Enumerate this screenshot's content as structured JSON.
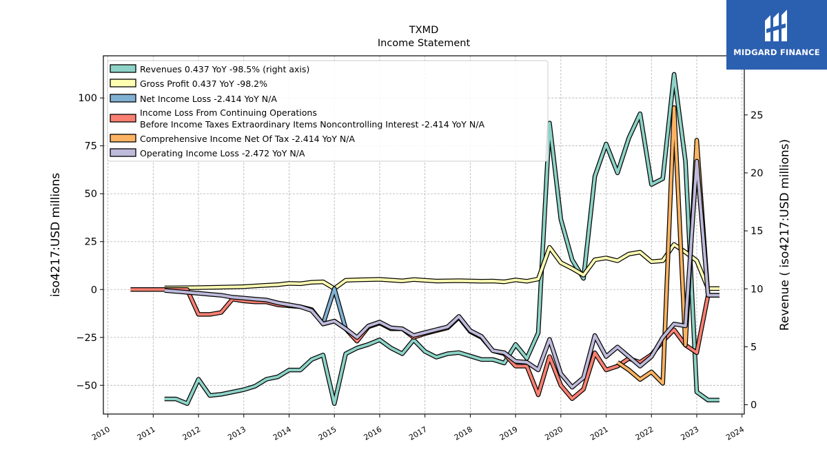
{
  "chart_data": {
    "type": "line",
    "title": "TXMD",
    "subtitle": "Income Statement",
    "ylabel_left": "iso4217:USD  millions",
    "ylabel_right": "Revenue ( iso4217:USD  millions)",
    "x_ticks": [
      "2010",
      "2011",
      "2012",
      "2013",
      "2014",
      "2015",
      "2016",
      "2017",
      "2018",
      "2019",
      "2020",
      "2021",
      "2022",
      "2023",
      "2024"
    ],
    "y_left_ticks": [
      -50,
      -25,
      0,
      25,
      50,
      75,
      100
    ],
    "y_right_ticks": [
      0,
      5,
      10,
      15,
      20,
      25
    ],
    "ylim_left": [
      -65,
      122
    ],
    "ylim_right": [
      -0.8,
      30.1
    ],
    "xlim": [
      2009.9,
      2024.05
    ],
    "grid": true,
    "legend_placement": "upper-left",
    "series": [
      {
        "key": "revenues",
        "name": "Revenues  0.437 YoY -98.5% (right axis)",
        "color": "#8dd3c7",
        "axis": "right",
        "points": [
          [
            2011.25,
            0.5
          ],
          [
            2011.5,
            0.5
          ],
          [
            2011.75,
            0.1
          ],
          [
            2012.0,
            2.2
          ],
          [
            2012.25,
            0.8
          ],
          [
            2012.5,
            0.9
          ],
          [
            2013.0,
            1.3
          ],
          [
            2013.25,
            1.6
          ],
          [
            2013.5,
            2.2
          ],
          [
            2013.75,
            2.4
          ],
          [
            2014.0,
            3.0
          ],
          [
            2014.25,
            3.0
          ],
          [
            2014.5,
            3.9
          ],
          [
            2014.75,
            4.3
          ],
          [
            2015.0,
            0.1
          ],
          [
            2015.25,
            4.4
          ],
          [
            2015.5,
            4.9
          ],
          [
            2015.75,
            5.2
          ],
          [
            2016.0,
            5.6
          ],
          [
            2016.25,
            4.9
          ],
          [
            2016.5,
            4.4
          ],
          [
            2016.75,
            5.6
          ],
          [
            2017.0,
            4.6
          ],
          [
            2017.25,
            4.1
          ],
          [
            2017.5,
            4.4
          ],
          [
            2017.75,
            4.5
          ],
          [
            2018.0,
            4.2
          ],
          [
            2018.25,
            3.9
          ],
          [
            2018.5,
            3.9
          ],
          [
            2018.75,
            3.6
          ],
          [
            2019.0,
            5.2
          ],
          [
            2019.25,
            4.0
          ],
          [
            2019.5,
            6.2
          ],
          [
            2019.75,
            24.3
          ],
          [
            2020.0,
            16.0
          ],
          [
            2020.25,
            12.5
          ],
          [
            2020.5,
            10.9
          ],
          [
            2020.75,
            19.7
          ],
          [
            2021.0,
            22.5
          ],
          [
            2021.25,
            20.0
          ],
          [
            2021.5,
            23.0
          ],
          [
            2021.75,
            25.1
          ],
          [
            2022.0,
            19.0
          ],
          [
            2022.25,
            19.5
          ],
          [
            2022.5,
            28.5
          ],
          [
            2022.75,
            21.0
          ],
          [
            2023.0,
            1.1
          ],
          [
            2023.25,
            0.4
          ],
          [
            2023.5,
            0.4
          ]
        ]
      },
      {
        "key": "gross_profit",
        "name": "Gross Profit  0.437 YoY -98.2%",
        "color": "#ffffb3",
        "axis": "left",
        "points": [
          [
            2011.25,
            0.8
          ],
          [
            2012.0,
            1.0
          ],
          [
            2012.5,
            1.2
          ],
          [
            2013.0,
            1.5
          ],
          [
            2013.5,
            2.2
          ],
          [
            2013.75,
            2.5
          ],
          [
            2014.0,
            3.2
          ],
          [
            2014.25,
            3.0
          ],
          [
            2014.5,
            3.8
          ],
          [
            2014.75,
            4.0
          ],
          [
            2015.0,
            0.5
          ],
          [
            2015.25,
            4.8
          ],
          [
            2015.5,
            5.0
          ],
          [
            2016.0,
            5.3
          ],
          [
            2016.5,
            4.5
          ],
          [
            2016.75,
            5.2
          ],
          [
            2017.0,
            4.8
          ],
          [
            2017.25,
            4.4
          ],
          [
            2017.75,
            4.6
          ],
          [
            2018.25,
            4.3
          ],
          [
            2018.5,
            4.4
          ],
          [
            2018.75,
            4.0
          ],
          [
            2019.0,
            5.0
          ],
          [
            2019.25,
            4.3
          ],
          [
            2019.5,
            5.5
          ],
          [
            2019.75,
            22.0
          ],
          [
            2020.0,
            14.0
          ],
          [
            2020.25,
            11.0
          ],
          [
            2020.5,
            7.5
          ],
          [
            2020.75,
            15.5
          ],
          [
            2021.0,
            16.5
          ],
          [
            2021.25,
            15.0
          ],
          [
            2021.5,
            18.5
          ],
          [
            2021.75,
            19.5
          ],
          [
            2022.0,
            14.5
          ],
          [
            2022.25,
            15.0
          ],
          [
            2022.5,
            23.5
          ],
          [
            2022.75,
            19.5
          ],
          [
            2023.0,
            15.0
          ],
          [
            2023.25,
            0.5
          ],
          [
            2023.5,
            0.5
          ]
        ]
      },
      {
        "key": "net_income",
        "name": "Net Income Loss  -2.414 YoY N/A",
        "color": "#80b1d3",
        "axis": "left",
        "points": [
          [
            2014.75,
            -18.0
          ],
          [
            2015.0,
            0.5
          ],
          [
            2015.25,
            -20.5
          ],
          [
            2015.5,
            -27.0
          ]
        ]
      },
      {
        "key": "pretax_income",
        "name": "Income Loss From Continuing Operations\nBefore Income Taxes Extraordinary Items Noncontrolling Interest  -2.414 YoY N/A",
        "color": "#fb8072",
        "axis": "left",
        "points": [
          [
            2010.5,
            0.0
          ],
          [
            2010.75,
            0.0
          ],
          [
            2011.25,
            0.0
          ],
          [
            2011.5,
            0.0
          ],
          [
            2011.75,
            0.0
          ],
          [
            2012.0,
            -13.0
          ],
          [
            2012.25,
            -13.0
          ],
          [
            2012.5,
            -12.0
          ],
          [
            2012.75,
            -5.0
          ],
          [
            2013.0,
            -6.0
          ],
          [
            2013.25,
            -6.5
          ],
          [
            2013.5,
            -6.5
          ],
          [
            2013.75,
            -8.0
          ],
          [
            2014.0,
            -8.5
          ],
          [
            2014.25,
            -9.0
          ],
          [
            2014.5,
            -10.5
          ],
          [
            2014.75,
            -18.0
          ],
          [
            2015.0,
            -16.5
          ],
          [
            2015.25,
            -20.5
          ],
          [
            2015.5,
            -27.0
          ],
          [
            2015.75,
            -19.5
          ],
          [
            2016.0,
            -17.5
          ],
          [
            2016.25,
            -20.5
          ],
          [
            2016.5,
            -20.5
          ],
          [
            2016.75,
            -25.0
          ],
          [
            2017.0,
            -23.0
          ],
          [
            2017.25,
            -21.5
          ],
          [
            2017.5,
            -20.0
          ],
          [
            2017.75,
            -14.5
          ],
          [
            2018.0,
            -22.0
          ],
          [
            2018.25,
            -25.0
          ],
          [
            2018.5,
            -32.0
          ],
          [
            2018.75,
            -33.5
          ],
          [
            2019.0,
            -40.0
          ],
          [
            2019.25,
            -40.0
          ],
          [
            2019.5,
            -55.0
          ],
          [
            2019.75,
            -35.0
          ],
          [
            2020.0,
            -50.0
          ],
          [
            2020.25,
            -57.0
          ],
          [
            2020.5,
            -52.0
          ],
          [
            2020.75,
            -33.0
          ],
          [
            2021.0,
            -42.0
          ],
          [
            2021.25,
            -40.0
          ],
          [
            2021.5,
            -36.0
          ],
          [
            2021.75,
            -38.0
          ],
          [
            2022.0,
            -34.0
          ],
          [
            2022.25,
            -27.0
          ],
          [
            2022.5,
            -21.0
          ],
          [
            2022.75,
            -29.0
          ],
          [
            2023.0,
            -33.0
          ],
          [
            2023.25,
            -3.0
          ],
          [
            2023.5,
            -3.0
          ]
        ]
      },
      {
        "key": "comprehensive_income",
        "name": "Comprehensive Income Net Of Tax  -2.414 YoY N/A",
        "color": "#fdb462",
        "axis": "left",
        "points": [
          [
            2021.25,
            -38.0
          ],
          [
            2021.5,
            -42.0
          ],
          [
            2021.75,
            -47.0
          ],
          [
            2022.0,
            -43.0
          ],
          [
            2022.25,
            -49.0
          ],
          [
            2022.5,
            95.0
          ],
          [
            2022.75,
            -29.0
          ],
          [
            2023.0,
            78.0
          ],
          [
            2023.25,
            -3.0
          ],
          [
            2023.5,
            -3.0
          ]
        ]
      },
      {
        "key": "operating_income",
        "name": "Operating Income Loss  -2.472 YoY N/A",
        "color": "#bebada",
        "axis": "left",
        "points": [
          [
            2011.25,
            -0.5
          ],
          [
            2011.5,
            -1.0
          ],
          [
            2011.75,
            -1.5
          ],
          [
            2012.0,
            -2.0
          ],
          [
            2012.25,
            -2.5
          ],
          [
            2012.5,
            -3.0
          ],
          [
            2012.75,
            -4.0
          ],
          [
            2013.0,
            -4.5
          ],
          [
            2013.25,
            -5.0
          ],
          [
            2013.5,
            -5.5
          ],
          [
            2013.75,
            -7.0
          ],
          [
            2014.0,
            -8.0
          ],
          [
            2014.25,
            -9.0
          ],
          [
            2014.5,
            -11.0
          ],
          [
            2014.75,
            -18.0
          ],
          [
            2015.0,
            -16.5
          ],
          [
            2015.25,
            -20.5
          ],
          [
            2015.5,
            -25.0
          ],
          [
            2015.75,
            -19.0
          ],
          [
            2016.0,
            -17.0
          ],
          [
            2016.25,
            -20.0
          ],
          [
            2016.5,
            -20.5
          ],
          [
            2016.75,
            -24.0
          ],
          [
            2017.0,
            -22.5
          ],
          [
            2017.25,
            -21.0
          ],
          [
            2017.5,
            -19.5
          ],
          [
            2017.75,
            -14.0
          ],
          [
            2018.0,
            -21.5
          ],
          [
            2018.25,
            -24.5
          ],
          [
            2018.5,
            -32.0
          ],
          [
            2018.75,
            -33.0
          ],
          [
            2019.0,
            -37.5
          ],
          [
            2019.25,
            -38.0
          ],
          [
            2019.5,
            -42.0
          ],
          [
            2019.75,
            -26.0
          ],
          [
            2020.0,
            -44.0
          ],
          [
            2020.25,
            -51.0
          ],
          [
            2020.5,
            -46.0
          ],
          [
            2020.75,
            -24.0
          ],
          [
            2021.0,
            -35.0
          ],
          [
            2021.25,
            -30.0
          ],
          [
            2021.5,
            -35.0
          ],
          [
            2021.75,
            -40.0
          ],
          [
            2022.0,
            -35.0
          ],
          [
            2022.25,
            -25.0
          ],
          [
            2022.5,
            -18.0
          ],
          [
            2022.75,
            -19.0
          ],
          [
            2023.0,
            67.0
          ],
          [
            2023.25,
            -3.0
          ],
          [
            2023.5,
            -3.0
          ]
        ]
      }
    ]
  },
  "logo": {
    "text": "MIDGARD FINANCE",
    "icon": "midgard-logo-icon"
  }
}
